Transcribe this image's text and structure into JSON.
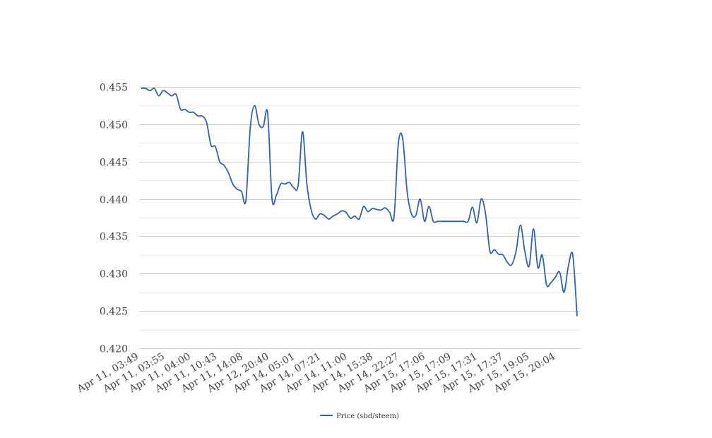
{
  "chart_data": {
    "type": "line",
    "title": "",
    "xlabel": "",
    "ylabel": "",
    "ylim": [
      0.42,
      0.455
    ],
    "yticks": [
      "0.420",
      "0.425",
      "0.430",
      "0.435",
      "0.440",
      "0.445",
      "0.450",
      "0.455"
    ],
    "y_minor_grid": [
      0.4225,
      0.4275,
      0.4325,
      0.4375,
      0.4425,
      0.4475,
      0.4525
    ],
    "x_tick_labels": [
      "Apr 11, 03:49",
      "Apr 11, 03:55",
      "Apr 11, 04:00",
      "Apr 11, 10:43",
      "Apr 11, 14:08",
      "Apr 12, 20:40",
      "Apr 14, 05:01",
      "Apr 14, 07:21",
      "Apr 14, 11:00",
      "Apr 14, 15:38",
      "Apr 14, 22:27",
      "Apr 15, 17:06",
      "Apr 15, 17:09",
      "Apr 15, 17:31",
      "Apr 15, 17:37",
      "Apr 15, 19:05",
      "Apr 15, 20:04"
    ],
    "grid": true,
    "legend": {
      "position": "bottom-center"
    },
    "series": [
      {
        "name": "Price (sbd/steem)",
        "color": "#3060b0",
        "values": [
          0.4548,
          0.4548,
          0.4545,
          0.4548,
          0.4538,
          0.4545,
          0.4542,
          0.4538,
          0.454,
          0.452,
          0.452,
          0.4516,
          0.4516,
          0.4511,
          0.4511,
          0.4502,
          0.4472,
          0.447,
          0.445,
          0.4445,
          0.4435,
          0.442,
          0.4413,
          0.441,
          0.4398,
          0.4495,
          0.4525,
          0.45,
          0.4497,
          0.4515,
          0.44,
          0.4405,
          0.442,
          0.442,
          0.4422,
          0.4415,
          0.4418,
          0.449,
          0.442,
          0.4385,
          0.4373,
          0.438,
          0.4378,
          0.4373,
          0.4377,
          0.438,
          0.4384,
          0.4382,
          0.4374,
          0.4377,
          0.4373,
          0.439,
          0.4383,
          0.4387,
          0.4386,
          0.4385,
          0.4388,
          0.4382,
          0.4376,
          0.4475,
          0.448,
          0.441,
          0.438,
          0.4378,
          0.44,
          0.437,
          0.439,
          0.437,
          0.437,
          0.437,
          0.437,
          0.437,
          0.437,
          0.437,
          0.437,
          0.437,
          0.4389,
          0.4368,
          0.44,
          0.438,
          0.433,
          0.4332,
          0.4326,
          0.4325,
          0.4315,
          0.4312,
          0.433,
          0.4365,
          0.433,
          0.431,
          0.436,
          0.4308,
          0.4325,
          0.4285,
          0.4288,
          0.4295,
          0.4302,
          0.4275,
          0.431,
          0.4325,
          0.4243
        ]
      }
    ]
  }
}
